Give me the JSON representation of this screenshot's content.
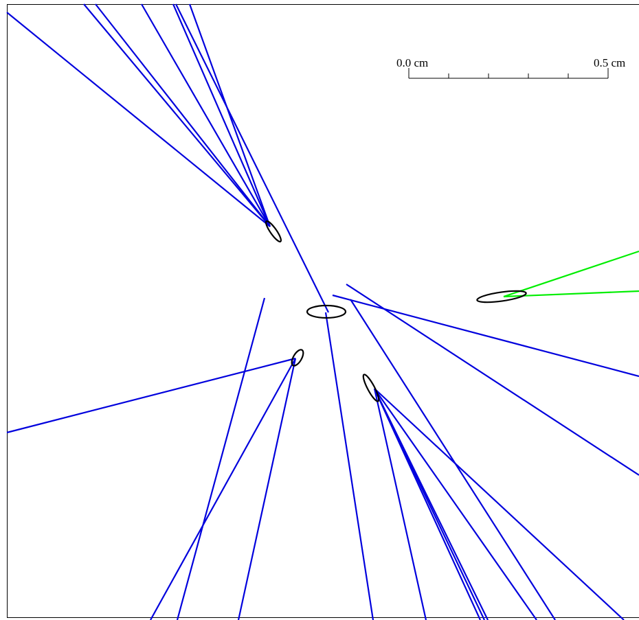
{
  "colors": {
    "charged_track": "#0000dd",
    "neutral_track": "#00ee00",
    "vertex": "#000000",
    "frame": "#000000"
  },
  "scale_bar": {
    "label_start": "0.0 cm",
    "label_end": "0.5 cm",
    "length_cm": 0.5,
    "minor_divisions": 5
  }
}
